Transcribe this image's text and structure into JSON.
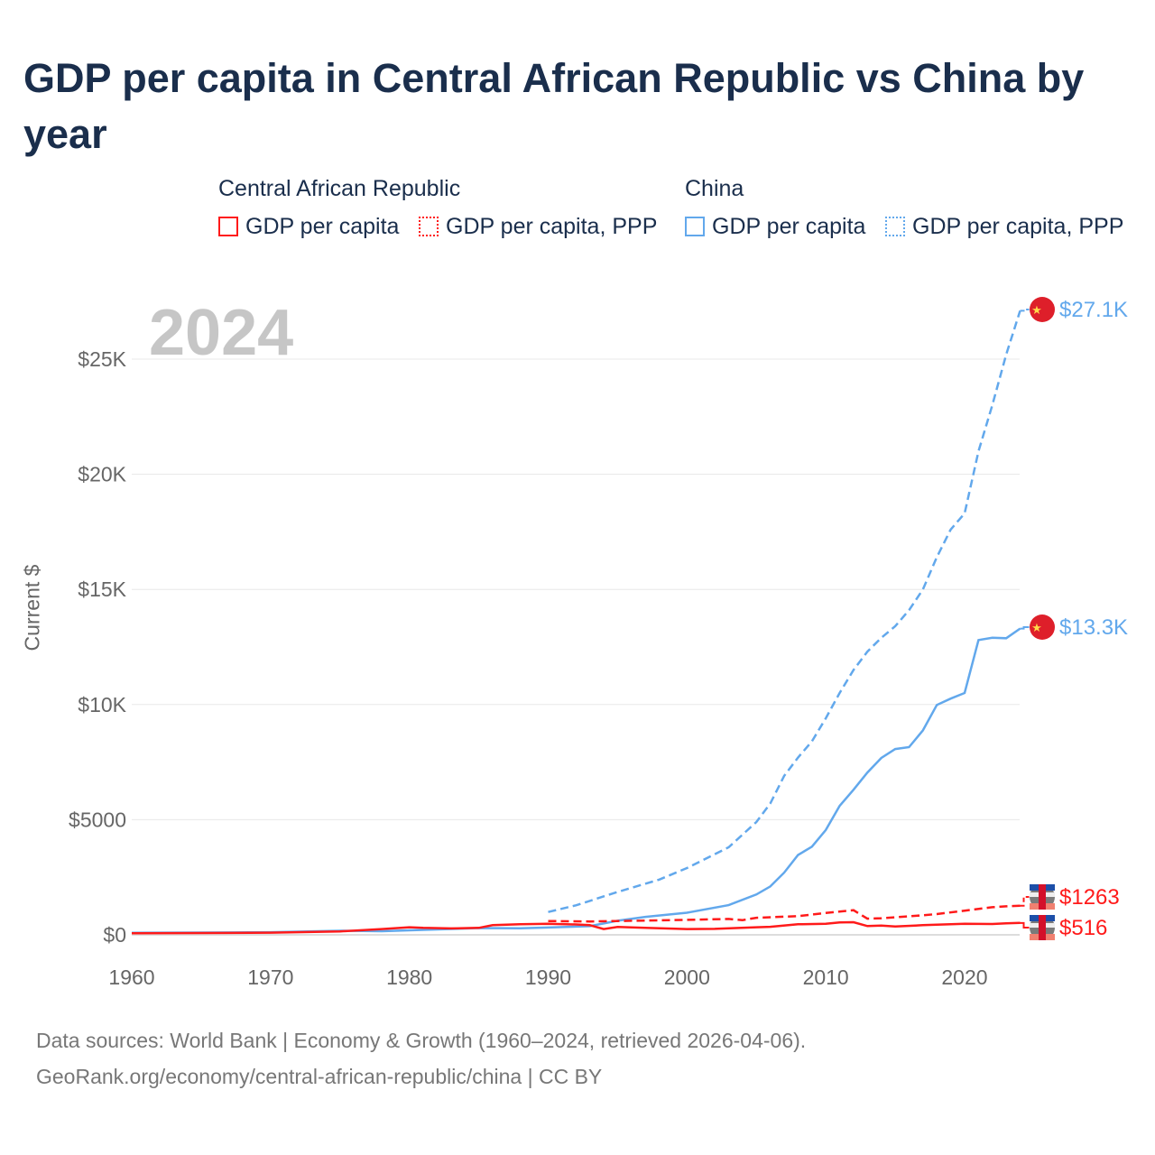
{
  "title": "GDP per capita in Central African Republic vs China by year",
  "legend": {
    "groups": [
      {
        "name": "Central African Republic",
        "items": [
          "GDP per capita",
          "GDP per capita, PPP"
        ],
        "color": "#ff1a1a"
      },
      {
        "name": "China",
        "items": [
          "GDP per capita",
          "GDP per capita, PPP"
        ],
        "color": "#62a8ec"
      }
    ]
  },
  "year_label": "2024",
  "footer": {
    "line1": "Data sources: World Bank | Economy & Growth (1960–2024, retrieved 2026-04-06).",
    "line2": "GeoRank.org/economy/central-african-republic/china | CC BY"
  },
  "chart_data": {
    "type": "line",
    "title": "GDP per capita in Central African Republic vs China by year",
    "xlabel": "",
    "ylabel": "Current $",
    "xlim": [
      1960,
      2024
    ],
    "ylim": [
      0,
      27500
    ],
    "xticks": [
      1960,
      1970,
      1980,
      1990,
      2000,
      2010,
      2020
    ],
    "yticks": [
      {
        "v": 0,
        "l": "$0"
      },
      {
        "v": 5000,
        "l": "$5000"
      },
      {
        "v": 10000,
        "l": "$10K"
      },
      {
        "v": 15000,
        "l": "$15K"
      },
      {
        "v": 20000,
        "l": "$20K"
      },
      {
        "v": 25000,
        "l": "$25K"
      }
    ],
    "series": [
      {
        "name": "China GDP per capita",
        "color": "#62a8ec",
        "dash": false,
        "end_label": "$13.3K",
        "points": [
          [
            1960,
            90
          ],
          [
            1965,
            98
          ],
          [
            1970,
            113
          ],
          [
            1975,
            178
          ],
          [
            1978,
            156
          ],
          [
            1980,
            195
          ],
          [
            1985,
            294
          ],
          [
            1988,
            283
          ],
          [
            1990,
            318
          ],
          [
            1993,
            377
          ],
          [
            1995,
            610
          ],
          [
            1997,
            780
          ],
          [
            2000,
            959
          ],
          [
            2003,
            1290
          ],
          [
            2005,
            1753
          ],
          [
            2006,
            2100
          ],
          [
            2007,
            2700
          ],
          [
            2008,
            3468
          ],
          [
            2009,
            3830
          ],
          [
            2010,
            4550
          ],
          [
            2011,
            5600
          ],
          [
            2012,
            6300
          ],
          [
            2013,
            7050
          ],
          [
            2014,
            7680
          ],
          [
            2015,
            8070
          ],
          [
            2016,
            8150
          ],
          [
            2017,
            8880
          ],
          [
            2018,
            9980
          ],
          [
            2019,
            10260
          ],
          [
            2020,
            10500
          ],
          [
            2021,
            12800
          ],
          [
            2022,
            12900
          ],
          [
            2023,
            12880
          ],
          [
            2024,
            13300
          ]
        ]
      },
      {
        "name": "China GDP per capita, PPP",
        "color": "#62a8ec",
        "dash": true,
        "end_label": "$27.1K",
        "points": [
          [
            1990,
            990
          ],
          [
            1992,
            1280
          ],
          [
            1995,
            1860
          ],
          [
            1998,
            2400
          ],
          [
            2000,
            2900
          ],
          [
            2003,
            3800
          ],
          [
            2005,
            4900
          ],
          [
            2006,
            5700
          ],
          [
            2007,
            6900
          ],
          [
            2008,
            7700
          ],
          [
            2009,
            8400
          ],
          [
            2010,
            9400
          ],
          [
            2011,
            10500
          ],
          [
            2012,
            11500
          ],
          [
            2013,
            12300
          ],
          [
            2014,
            12900
          ],
          [
            2015,
            13400
          ],
          [
            2016,
            14100
          ],
          [
            2017,
            15000
          ],
          [
            2018,
            16400
          ],
          [
            2019,
            17600
          ],
          [
            2020,
            18300
          ],
          [
            2021,
            21000
          ],
          [
            2022,
            23000
          ],
          [
            2023,
            25200
          ],
          [
            2024,
            27100
          ]
        ]
      },
      {
        "name": "Central African Republic GDP per capita",
        "color": "#ff1a1a",
        "dash": false,
        "end_label": "$516",
        "points": [
          [
            1960,
            70
          ],
          [
            1965,
            80
          ],
          [
            1970,
            95
          ],
          [
            1975,
            150
          ],
          [
            1978,
            250
          ],
          [
            1980,
            330
          ],
          [
            1981,
            300
          ],
          [
            1983,
            280
          ],
          [
            1985,
            300
          ],
          [
            1986,
            420
          ],
          [
            1988,
            460
          ],
          [
            1990,
            480
          ],
          [
            1992,
            450
          ],
          [
            1993,
            420
          ],
          [
            1994,
            250
          ],
          [
            1995,
            340
          ],
          [
            1997,
            300
          ],
          [
            2000,
            250
          ],
          [
            2002,
            260
          ],
          [
            2005,
            330
          ],
          [
            2006,
            350
          ],
          [
            2008,
            460
          ],
          [
            2010,
            480
          ],
          [
            2011,
            540
          ],
          [
            2012,
            550
          ],
          [
            2013,
            380
          ],
          [
            2014,
            400
          ],
          [
            2015,
            360
          ],
          [
            2017,
            420
          ],
          [
            2020,
            480
          ],
          [
            2022,
            470
          ],
          [
            2023,
            500
          ],
          [
            2024,
            516
          ]
        ]
      },
      {
        "name": "Central African Republic GDP per capita, PPP",
        "color": "#ff1a1a",
        "dash": true,
        "end_label": "$1263",
        "points": [
          [
            1990,
            600
          ],
          [
            1993,
            580
          ],
          [
            1995,
            600
          ],
          [
            2000,
            650
          ],
          [
            2003,
            690
          ],
          [
            2004,
            640
          ],
          [
            2005,
            740
          ],
          [
            2008,
            810
          ],
          [
            2010,
            950
          ],
          [
            2012,
            1070
          ],
          [
            2013,
            700
          ],
          [
            2014,
            720
          ],
          [
            2015,
            760
          ],
          [
            2017,
            850
          ],
          [
            2018,
            900
          ],
          [
            2020,
            1050
          ],
          [
            2022,
            1200
          ],
          [
            2023,
            1240
          ],
          [
            2024,
            1263
          ]
        ]
      }
    ]
  }
}
